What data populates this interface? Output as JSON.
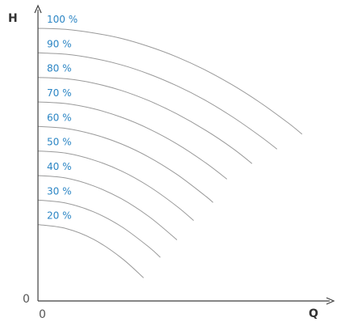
{
  "chart_data": {
    "type": "line",
    "title": "",
    "xlabel": "Q",
    "ylabel": "H",
    "origin_x_label": "0",
    "origin_y_label": "0",
    "xlim": [
      0,
      1
    ],
    "ylim": [
      0,
      1
    ],
    "grid": false,
    "colors": {
      "curve": "#9a9a9a",
      "label": "#2b85c4",
      "axis": "#3f3f3f"
    },
    "series": [
      {
        "name": "100 %",
        "x": [
          0,
          0.1,
          0.2,
          0.3,
          0.4,
          0.5,
          0.6,
          0.7,
          0.8,
          0.9,
          0.95
        ],
        "y": [
          1.0,
          0.996,
          0.983,
          0.963,
          0.933,
          0.895,
          0.848,
          0.792,
          0.727,
          0.653,
          0.612
        ]
      },
      {
        "name": "90 %",
        "x": [
          0,
          0.1,
          0.2,
          0.3,
          0.4,
          0.5,
          0.6,
          0.7,
          0.8,
          0.86
        ],
        "y": [
          0.91,
          0.905,
          0.89,
          0.866,
          0.832,
          0.789,
          0.737,
          0.675,
          0.604,
          0.557
        ]
      },
      {
        "name": "80 %",
        "x": [
          0,
          0.1,
          0.2,
          0.3,
          0.4,
          0.5,
          0.6,
          0.7,
          0.77
        ],
        "y": [
          0.82,
          0.815,
          0.799,
          0.772,
          0.734,
          0.686,
          0.628,
          0.56,
          0.504
        ]
      },
      {
        "name": "70 %",
        "x": [
          0,
          0.1,
          0.2,
          0.3,
          0.4,
          0.5,
          0.6,
          0.68
        ],
        "y": [
          0.73,
          0.724,
          0.705,
          0.674,
          0.631,
          0.576,
          0.509,
          0.447
        ]
      },
      {
        "name": "60 %",
        "x": [
          0,
          0.1,
          0.2,
          0.3,
          0.4,
          0.5,
          0.6,
          0.63
        ],
        "y": [
          0.64,
          0.633,
          0.611,
          0.576,
          0.527,
          0.464,
          0.387,
          0.361
        ]
      },
      {
        "name": "50 %",
        "x": [
          0,
          0.1,
          0.2,
          0.3,
          0.4,
          0.5,
          0.56
        ],
        "y": [
          0.55,
          0.542,
          0.517,
          0.477,
          0.42,
          0.347,
          0.295
        ]
      },
      {
        "name": "40 %",
        "x": [
          0,
          0.1,
          0.2,
          0.3,
          0.4,
          0.5
        ],
        "y": [
          0.46,
          0.451,
          0.422,
          0.375,
          0.309,
          0.224
        ]
      },
      {
        "name": "30 %",
        "x": [
          0,
          0.1,
          0.2,
          0.3,
          0.4,
          0.44
        ],
        "y": [
          0.37,
          0.359,
          0.327,
          0.273,
          0.197,
          0.16
        ]
      },
      {
        "name": "20 %",
        "x": [
          0,
          0.1,
          0.2,
          0.3,
          0.38
        ],
        "y": [
          0.28,
          0.266,
          0.226,
          0.158,
          0.085
        ]
      }
    ]
  }
}
